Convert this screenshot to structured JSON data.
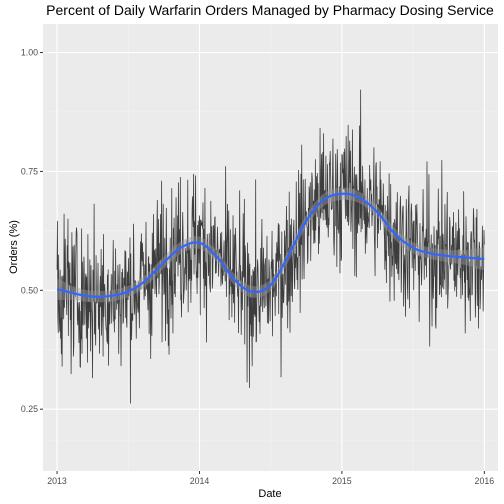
{
  "chart_data": {
    "type": "line",
    "title": "Percent of Daily Warfarin Orders Managed by Pharmacy Dosing Service",
    "xlabel": "Date",
    "ylabel": "Orders (%)",
    "xlim": [
      "2012-11-26",
      "2016-02-05"
    ],
    "ylim": [
      0.12,
      1.06
    ],
    "x_ticks": [
      "2013-01-01",
      "2014-01-01",
      "2015-01-01",
      "2016-01-01"
    ],
    "x_tick_labels": [
      "2013",
      "2014",
      "2015",
      "2016"
    ],
    "y_ticks": [
      0.25,
      0.5,
      0.75,
      1.0
    ],
    "y_tick_labels": [
      "0.25",
      "0.50",
      "0.75",
      "1.00"
    ],
    "grid": true,
    "panel_background": "#ebebeb",
    "series": [
      {
        "kind": "daily",
        "color": "#3d3d3d",
        "x_start": "2013-01-01",
        "x_end": "2016-01-01",
        "y_range": [
          0.23,
          0.96
        ],
        "note": "noisy daily values oscillating around the smoothed trend"
      },
      {
        "kind": "smooth",
        "color": "#3366ff",
        "band_color": "#999999",
        "x": [
          "2013-01-01",
          "2013-02-15",
          "2013-04-01",
          "2013-05-15",
          "2013-07-01",
          "2013-08-15",
          "2013-10-01",
          "2013-11-15",
          "2014-01-01",
          "2014-02-15",
          "2014-04-01",
          "2014-05-15",
          "2014-07-01",
          "2014-08-15",
          "2014-10-01",
          "2014-11-15",
          "2015-01-01",
          "2015-02-15",
          "2015-04-01",
          "2015-05-15",
          "2015-07-01",
          "2015-08-15",
          "2015-10-01",
          "2015-11-15",
          "2016-01-01"
        ],
        "y": [
          0.502,
          0.493,
          0.487,
          0.488,
          0.497,
          0.52,
          0.558,
          0.59,
          0.6,
          0.57,
          0.522,
          0.497,
          0.51,
          0.57,
          0.645,
          0.69,
          0.703,
          0.695,
          0.665,
          0.62,
          0.59,
          0.578,
          0.572,
          0.569,
          0.566
        ],
        "band_half_width": [
          0.022,
          0.014,
          0.012,
          0.012,
          0.012,
          0.012,
          0.012,
          0.013,
          0.013,
          0.012,
          0.012,
          0.012,
          0.012,
          0.012,
          0.013,
          0.013,
          0.013,
          0.012,
          0.012,
          0.012,
          0.012,
          0.012,
          0.013,
          0.016,
          0.024
        ]
      }
    ]
  }
}
